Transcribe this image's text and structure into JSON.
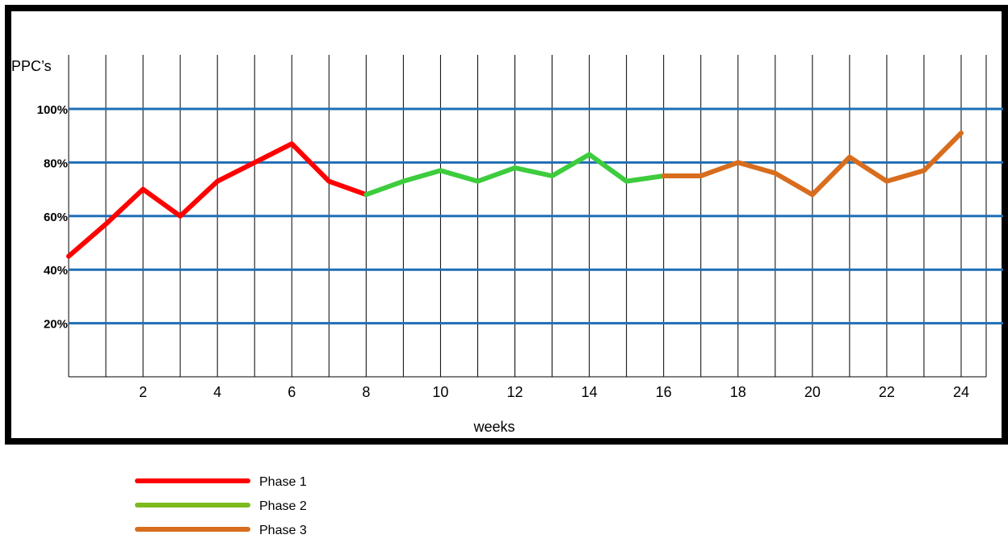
{
  "chart_data": {
    "type": "line",
    "ylabel": "PPC’s",
    "xlabel": "weeks",
    "x_ticks": [
      "2",
      "4",
      "6",
      "8",
      "10",
      "12",
      "14",
      "16",
      "18",
      "20",
      "22",
      "24"
    ],
    "y_ticks": [
      "20%",
      "40%",
      "60%",
      "80%",
      "100%"
    ],
    "ylim": [
      0,
      100
    ],
    "xlim": [
      0,
      24
    ],
    "grid": true,
    "legend_position": "bottom-left",
    "series": [
      {
        "name": "Phase 1",
        "color": "#ff0000",
        "x": [
          0,
          1,
          2,
          3,
          4,
          5,
          6,
          7,
          8
        ],
        "values": [
          45,
          57,
          70,
          60,
          73,
          80,
          87,
          73,
          68
        ]
      },
      {
        "name": "Phase 2",
        "color": "#3dcc3d",
        "legend_color": "#7cba1e",
        "x": [
          8,
          9,
          10,
          11,
          12,
          13,
          14,
          15,
          16
        ],
        "values": [
          68,
          73,
          77,
          73,
          78,
          75,
          83,
          73,
          75
        ]
      },
      {
        "name": "Phase 3",
        "color": "#d86d1d",
        "x": [
          16,
          17,
          18,
          19,
          20,
          21,
          22,
          23,
          24
        ],
        "values": [
          75,
          75,
          80,
          76,
          68,
          82,
          73,
          77,
          91
        ]
      }
    ],
    "colors": {
      "horizontal_grid": "#1f6fb5",
      "vertical_grid": "#000000",
      "frame": "#000000"
    }
  }
}
